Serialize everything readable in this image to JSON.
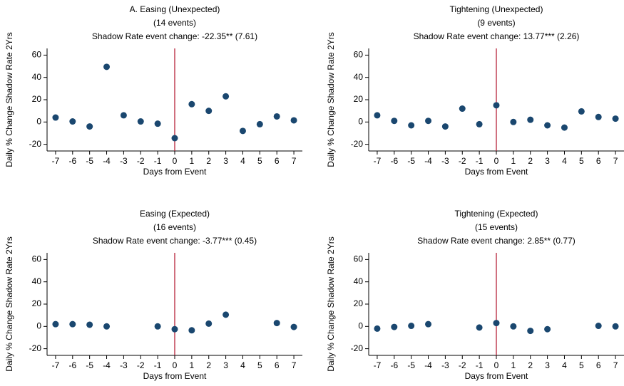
{
  "chart_data": [
    {
      "type": "scatter",
      "title": "A. Easing (Unexpected)",
      "subtitle": [
        "(14 events)",
        "Shadow Rate event change: -22.35** (7.61)"
      ],
      "xlabel": "Days from Event",
      "ylabel": "Daily % Change Shadow Rate 2Yrs",
      "x": [
        -7,
        -6,
        -5,
        -4,
        -3,
        -2,
        -1,
        0,
        1,
        2,
        3,
        4,
        5,
        6,
        7
      ],
      "values": [
        4,
        0.5,
        -4,
        49.5,
        6,
        0.5,
        -1.5,
        -14.5,
        16,
        10,
        23,
        -8,
        -2,
        5,
        1.5
      ],
      "xlim": [
        -7.5,
        7.5
      ],
      "ylim": [
        -26,
        66
      ],
      "xticks": [
        -7,
        -6,
        -5,
        -4,
        -3,
        -2,
        -1,
        0,
        1,
        2,
        3,
        4,
        5,
        6,
        7
      ],
      "yticks": [
        -20,
        0,
        20,
        40,
        60
      ],
      "vline": 0,
      "color": "#1a476f",
      "vline_color": "#b0102a",
      "title_color": "#1a476f"
    },
    {
      "type": "scatter",
      "title": "Tightening (Unexpected)",
      "subtitle": [
        "(9 events)",
        "Shadow Rate event change: 13.77*** (2.26)"
      ],
      "xlabel": "Days from Event",
      "ylabel": "Daily % Change Shadow Rate 2Yrs",
      "x": [
        -7,
        -6,
        -5,
        -4,
        -3,
        -2,
        -1,
        0,
        1,
        2,
        3,
        4,
        5,
        6,
        7
      ],
      "values": [
        6,
        1,
        -3,
        1,
        -4,
        12,
        -2,
        15,
        0,
        2,
        -3,
        -5,
        9.5,
        4.5,
        3
      ],
      "xlim": [
        -7.5,
        7.5
      ],
      "ylim": [
        -26,
        66
      ],
      "xticks": [
        -7,
        -6,
        -5,
        -4,
        -3,
        -2,
        -1,
        0,
        1,
        2,
        3,
        4,
        5,
        6,
        7
      ],
      "yticks": [
        -20,
        0,
        20,
        40,
        60
      ],
      "vline": 0,
      "color": "#1a476f",
      "vline_color": "#b0102a",
      "title_color": "#1a476f"
    },
    {
      "type": "scatter",
      "title": "Easing (Expected)",
      "subtitle": [
        "(16 events)",
        "Shadow Rate event change: -3.77*** (0.45)"
      ],
      "xlabel": "Days from Event",
      "ylabel": "Daily % Change Shadow Rate 2Yrs",
      "x": [
        -7,
        -6,
        -5,
        -4,
        -1,
        0,
        1,
        2,
        3,
        6,
        7
      ],
      "values": [
        2,
        2,
        1.5,
        0,
        0,
        -2.5,
        -3.5,
        2.5,
        10.5,
        3,
        -0.5
      ],
      "xlim": [
        -7.5,
        7.5
      ],
      "ylim": [
        -26,
        66
      ],
      "xticks": [
        -7,
        -6,
        -5,
        -4,
        -3,
        -2,
        -1,
        0,
        1,
        2,
        3,
        4,
        5,
        6,
        7
      ],
      "yticks": [
        -20,
        0,
        20,
        40,
        60
      ],
      "vline": 0,
      "color": "#1a476f",
      "vline_color": "#b0102a",
      "title_color": "#1a476f"
    },
    {
      "type": "scatter",
      "title": "Tightening (Expected)",
      "subtitle": [
        "(15 events)",
        "Shadow Rate event change: 2.85** (0.77)"
      ],
      "xlabel": "Days from Event",
      "ylabel": "Daily % Change Shadow Rate 2Yrs",
      "x": [
        -7,
        -6,
        -5,
        -4,
        -1,
        0,
        1,
        2,
        3,
        6,
        7
      ],
      "values": [
        -2,
        -0.5,
        0.5,
        2,
        -1,
        3,
        0,
        -4,
        -2.5,
        0.5,
        0
      ],
      "xlim": [
        -7.5,
        7.5
      ],
      "ylim": [
        -26,
        66
      ],
      "xticks": [
        -7,
        -6,
        -5,
        -4,
        -3,
        -2,
        -1,
        0,
        1,
        2,
        3,
        4,
        5,
        6,
        7
      ],
      "yticks": [
        -20,
        0,
        20,
        40,
        60
      ],
      "vline": 0,
      "color": "#1a476f",
      "vline_color": "#b0102a",
      "title_color": "#1a476f"
    }
  ]
}
